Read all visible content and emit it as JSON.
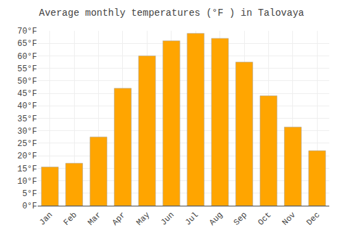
{
  "chart_data": {
    "type": "bar",
    "title": "Average monthly temperatures (°F ) in Talovaya",
    "categories": [
      "Jan",
      "Feb",
      "Mar",
      "Apr",
      "May",
      "Jun",
      "Jul",
      "Aug",
      "Sep",
      "Oct",
      "Nov",
      "Dec"
    ],
    "values": [
      15.5,
      17.0,
      27.5,
      47.0,
      60.0,
      66.0,
      69.0,
      67.0,
      57.5,
      44.0,
      31.5,
      22.0
    ],
    "color": "#FFA500",
    "ylim": [
      0,
      70
    ],
    "yticks": [
      {
        "value": 0,
        "label": "0°F"
      },
      {
        "value": 5,
        "label": "5°F"
      },
      {
        "value": 10,
        "label": "10°F"
      },
      {
        "value": 15,
        "label": "15°F"
      },
      {
        "value": 20,
        "label": "20°F"
      },
      {
        "value": 25,
        "label": "25°F"
      },
      {
        "value": 30,
        "label": "30°F"
      },
      {
        "value": 35,
        "label": "35°F"
      },
      {
        "value": 40,
        "label": "40°F"
      },
      {
        "value": 45,
        "label": "45°F"
      },
      {
        "value": 50,
        "label": "50°F"
      },
      {
        "value": 55,
        "label": "55°F"
      },
      {
        "value": 60,
        "label": "60°F"
      },
      {
        "value": 65,
        "label": "65°F"
      },
      {
        "value": 70,
        "label": "70°F"
      }
    ],
    "grid": true
  }
}
